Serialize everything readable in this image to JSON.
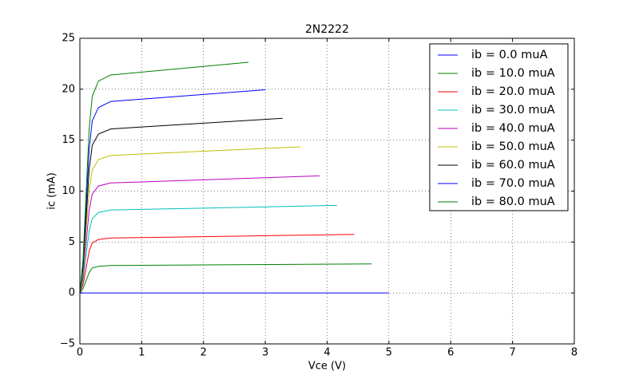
{
  "chart_data": {
    "type": "line",
    "title": "2N2222",
    "xlabel": "Vce (V)",
    "ylabel": "ic (mA)",
    "xlim": [
      0,
      8
    ],
    "ylim": [
      -5,
      25
    ],
    "xticks": [
      0,
      1,
      2,
      3,
      4,
      5,
      6,
      7,
      8
    ],
    "yticks": [
      {
        "value": -5,
        "label": "−5"
      },
      0,
      5,
      10,
      15,
      20,
      25
    ],
    "grid": true,
    "legend": "upper right",
    "series": [
      {
        "name": "ib = 0.0 muA",
        "color": "#0000ff",
        "x": [
          0,
          0.5,
          1,
          2,
          5.0
        ],
        "values": [
          0,
          0,
          0,
          0,
          0
        ]
      },
      {
        "name": "ib = 10.0 muA",
        "color": "#008000",
        "x": [
          0,
          0.05,
          0.1,
          0.15,
          0.2,
          0.3,
          0.5,
          1,
          2,
          4.72
        ],
        "values": [
          0,
          0.4,
          1.2,
          2.0,
          2.45,
          2.62,
          2.7,
          2.72,
          2.75,
          2.85
        ]
      },
      {
        "name": "ib = 20.0 muA",
        "color": "#ff0000",
        "x": [
          0,
          0.05,
          0.1,
          0.15,
          0.2,
          0.3,
          0.5,
          1,
          2,
          4.44
        ],
        "values": [
          0,
          0.8,
          2.4,
          4.1,
          4.9,
          5.25,
          5.4,
          5.44,
          5.53,
          5.75
        ]
      },
      {
        "name": "ib = 30.0 muA",
        "color": "#00bfbf",
        "x": [
          0,
          0.05,
          0.1,
          0.15,
          0.2,
          0.3,
          0.5,
          1,
          2,
          4.16
        ],
        "values": [
          0,
          1.2,
          3.7,
          6.1,
          7.3,
          7.9,
          8.15,
          8.21,
          8.33,
          8.6
        ]
      },
      {
        "name": "ib = 40.0 muA",
        "color": "#bf00bf",
        "x": [
          0,
          0.05,
          0.1,
          0.15,
          0.2,
          0.3,
          0.5,
          1,
          2,
          3.88
        ],
        "values": [
          0,
          1.6,
          4.9,
          8.1,
          9.7,
          10.5,
          10.8,
          10.9,
          11.11,
          11.5
        ]
      },
      {
        "name": "ib = 50.0 muA",
        "color": "#bfbf00",
        "x": [
          0,
          0.05,
          0.1,
          0.15,
          0.2,
          0.3,
          0.5,
          1,
          2,
          3.57
        ],
        "values": [
          0,
          2.0,
          6.1,
          10.1,
          12.1,
          13.1,
          13.5,
          13.64,
          13.92,
          14.35
        ]
      },
      {
        "name": "ib = 60.0 muA",
        "color": "#000000",
        "x": [
          0,
          0.05,
          0.1,
          0.15,
          0.2,
          0.3,
          0.5,
          1,
          2,
          3.28
        ],
        "values": [
          0,
          2.4,
          7.2,
          12.1,
          14.5,
          15.6,
          16.1,
          16.3,
          16.67,
          17.15
        ]
      },
      {
        "name": "ib = 70.0 muA",
        "color": "#0000ff",
        "x": [
          0,
          0.05,
          0.1,
          0.15,
          0.2,
          0.3,
          0.5,
          1,
          2,
          3.0
        ],
        "values": [
          0,
          2.8,
          8.5,
          14.1,
          16.9,
          18.2,
          18.8,
          19.03,
          19.49,
          19.95
        ]
      },
      {
        "name": "ib = 80.0 muA",
        "color": "#008000",
        "x": [
          0,
          0.05,
          0.1,
          0.15,
          0.2,
          0.3,
          0.5,
          1,
          2,
          2.73
        ],
        "values": [
          0,
          3.2,
          9.7,
          16.1,
          19.3,
          20.8,
          21.4,
          21.68,
          22.24,
          22.65
        ]
      }
    ]
  }
}
